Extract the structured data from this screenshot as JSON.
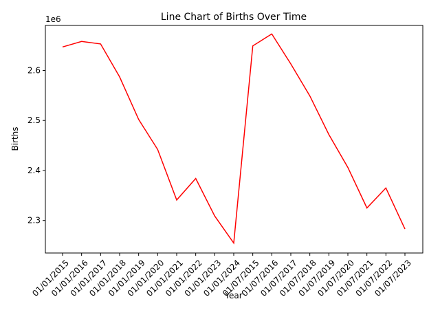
{
  "chart_data": {
    "type": "line",
    "title": "Line Chart of Births Over Time",
    "xlabel": "Year",
    "ylabel": "Births",
    "y_offset_label": "1e6",
    "categories": [
      "01/01/2015",
      "01/01/2016",
      "01/01/2017",
      "01/01/2018",
      "01/01/2019",
      "01/01/2020",
      "01/01/2021",
      "01/01/2022",
      "01/01/2023",
      "01/01/2024",
      "01/07/2015",
      "01/07/2016",
      "01/07/2017",
      "01/07/2018",
      "01/07/2019",
      "01/07/2020",
      "01/07/2021",
      "01/07/2022",
      "01/07/2023"
    ],
    "series": [
      {
        "values": [
          2647000,
          2658000,
          2653000,
          2587000,
          2502000,
          2442000,
          2341000,
          2384000,
          2309000,
          2255000,
          2649000,
          2673000,
          2613000,
          2549000,
          2472000,
          2406000,
          2325000,
          2365000,
          2283000
        ],
        "color": "#ff0000"
      }
    ],
    "ylim": [
      2235000,
      2690000
    ],
    "yticks": [
      2300000,
      2400000,
      2500000,
      2600000
    ],
    "ytick_labels": [
      "2.3",
      "2.4",
      "2.5",
      "2.6"
    ],
    "grid": false,
    "legend": false
  }
}
